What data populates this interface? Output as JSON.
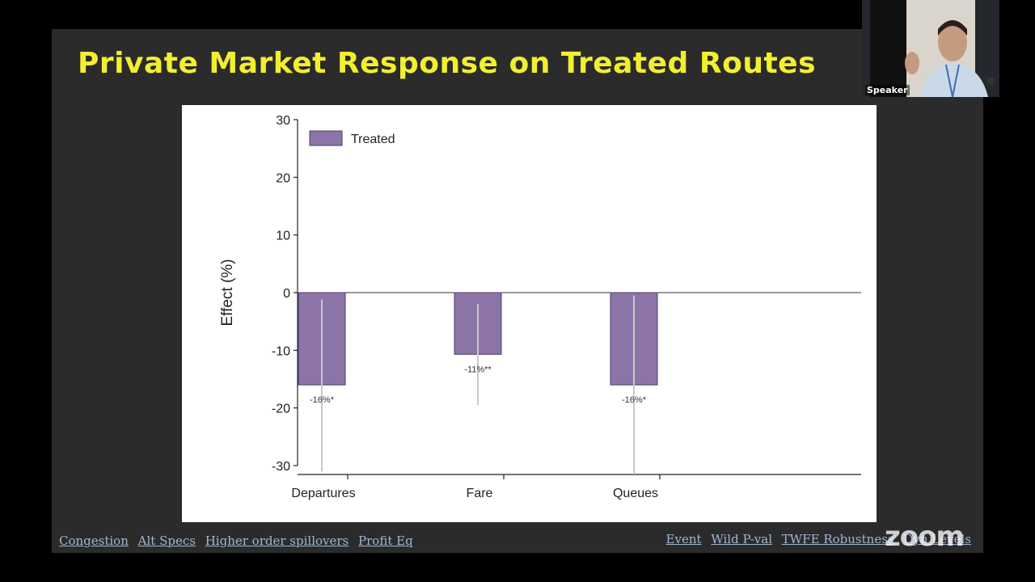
{
  "slide": {
    "title": "Private Market Response on Treated Routes"
  },
  "nav_left": [
    "Congestion",
    "Alt Specs",
    "Higher order spillovers",
    "Profit Eq"
  ],
  "nav_right": [
    "Event",
    "Wild P-val",
    "TWFE Robustness",
    "Dyn Levels"
  ],
  "video": {
    "speaker_label": "Speaker",
    "logo_text": "zoom"
  },
  "colors": {
    "title": "#f2ef2f",
    "bar": "#8c74a8",
    "slide_bg": "#2b2b2b",
    "link": "#9fb6d6"
  },
  "chart_data": {
    "type": "bar",
    "categories": [
      "Departures",
      "Fare",
      "Queues"
    ],
    "ylabel": "Effect (%)",
    "xlabel": "",
    "ylim": [
      -30,
      30
    ],
    "yticks": [
      30,
      20,
      10,
      0,
      -10,
      -20,
      -30
    ],
    "legend": "top-left",
    "series": [
      {
        "name": "Treated",
        "values": [
          -16,
          -10.7,
          -16
        ],
        "ci_low": [
          -31,
          -19.5,
          -31.5
        ],
        "ci_high": [
          -1.2,
          -2,
          -0.5
        ],
        "labels": [
          "-16%*",
          "-11%**",
          "-16%*"
        ]
      }
    ]
  }
}
